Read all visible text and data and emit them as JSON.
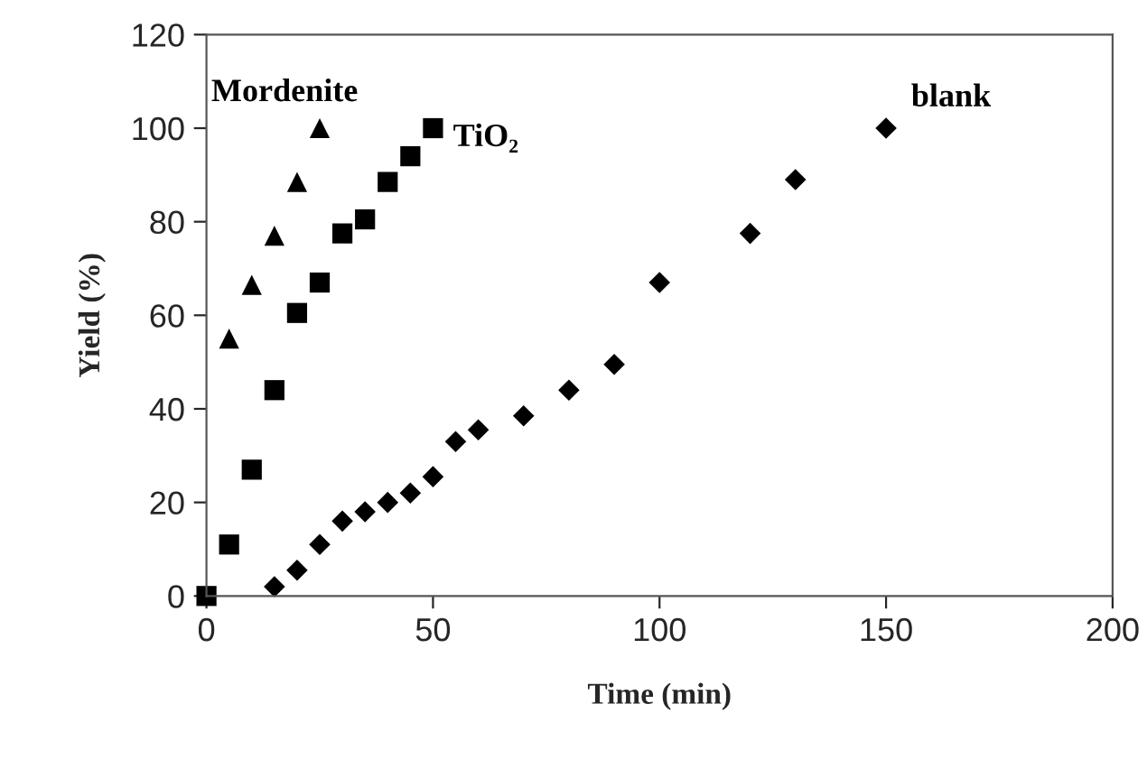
{
  "chart_data": {
    "type": "scatter",
    "xlabel": "Time (min)",
    "ylabel": "Yield (%)",
    "xlim": [
      0,
      200
    ],
    "xticks": [
      0,
      50,
      100,
      150,
      200
    ],
    "ylim": [
      0,
      120
    ],
    "yticks": [
      0,
      20,
      40,
      60,
      80,
      100,
      120
    ],
    "grid": false,
    "legend": false,
    "series": [
      {
        "name": "Mordenite",
        "color": "#000000",
        "marker": "triangle",
        "x": [
          5,
          10,
          15,
          20,
          25
        ],
        "values": [
          55,
          66.5,
          77,
          88.5,
          100
        ]
      },
      {
        "name": "TiO₂",
        "color": "#000000",
        "marker": "square",
        "x": [
          0,
          5,
          10,
          15,
          20,
          25,
          30,
          35,
          40,
          45,
          50
        ],
        "values": [
          0,
          11,
          27,
          44,
          60.5,
          67,
          77.5,
          80.5,
          88.5,
          94,
          100
        ]
      },
      {
        "name": "blank",
        "color": "#000000",
        "marker": "diamond",
        "x": [
          15,
          20,
          25,
          30,
          35,
          40,
          45,
          50,
          55,
          60,
          70,
          80,
          90,
          100,
          120,
          130,
          150
        ],
        "values": [
          2,
          5.5,
          11,
          16,
          18,
          20,
          22,
          25.5,
          33,
          35.5,
          38.5,
          44,
          49.5,
          67,
          77.5,
          89,
          100
        ]
      }
    ]
  }
}
